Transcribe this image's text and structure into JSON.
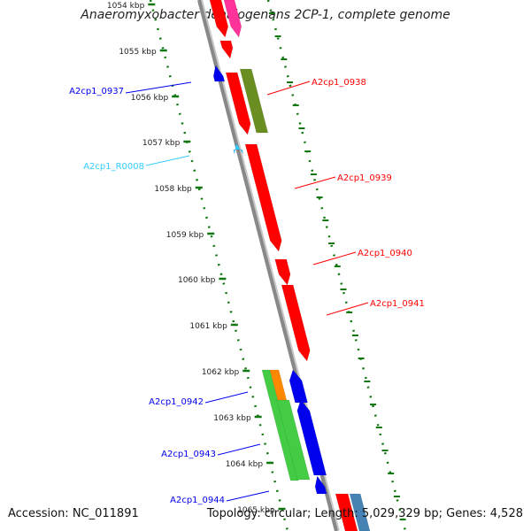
{
  "title": "Anaeromyxobacter dehalogenans 2CP-1, complete genome",
  "footer": {
    "accession": "Accession: NC_011891",
    "topology": "Topology: circular; Length: 5,029,329 bp; Genes: 4,528"
  },
  "colors": {
    "backbone": "#888888",
    "forward_gene": "#ff0000",
    "reverse_gene": "#0000ee",
    "rna_gene": "#33ccff",
    "tick": "#117711",
    "cds_olive": "#6b8e23",
    "cds_green": "#44cc44",
    "cds_orange": "#ff8800",
    "cds_pink": "#ff3399",
    "cds_steelblue": "#4682b4"
  },
  "ruler": {
    "unit": "kbp",
    "labels": [
      "1054 kbp",
      "1055 kbp",
      "1056 kbp",
      "1057 kbp",
      "1058 kbp",
      "1059 kbp",
      "1060 kbp",
      "1061 kbp",
      "1062 kbp",
      "1063 kbp",
      "1064 kbp",
      "1065 kbp"
    ]
  },
  "genes": [
    {
      "label": "A2cp1_0937",
      "strand": "reverse",
      "color": "#0000ee"
    },
    {
      "label": "A2cp1_0938",
      "strand": "forward",
      "color": "#ff0000"
    },
    {
      "label": "A2cp1_R0008",
      "strand": "reverse",
      "color": "#33ccff"
    },
    {
      "label": "A2cp1_0939",
      "strand": "forward",
      "color": "#ff0000"
    },
    {
      "label": "A2cp1_0940",
      "strand": "forward",
      "color": "#ff0000"
    },
    {
      "label": "A2cp1_0941",
      "strand": "forward",
      "color": "#ff0000"
    },
    {
      "label": "A2cp1_0942",
      "strand": "reverse",
      "color": "#0000ee"
    },
    {
      "label": "A2cp1_0943",
      "strand": "reverse",
      "color": "#0000ee"
    },
    {
      "label": "A2cp1_0944",
      "strand": "reverse",
      "color": "#0000ee"
    }
  ]
}
